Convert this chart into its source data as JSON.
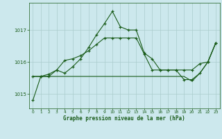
{
  "background_color": "#cce8ed",
  "grid_color": "#aacccc",
  "line_color": "#1a5c1a",
  "marker": "+",
  "ylim": [
    1014.55,
    1017.85
  ],
  "yticks": [
    1015,
    1016,
    1017
  ],
  "xlim": [
    -0.5,
    23.5
  ],
  "xticks": [
    0,
    1,
    2,
    3,
    4,
    5,
    6,
    7,
    8,
    9,
    10,
    11,
    12,
    13,
    14,
    15,
    16,
    17,
    18,
    19,
    20,
    21,
    22,
    23
  ],
  "xlabel": "Graphe pression niveau de la mer (hPa)",
  "line1_y": [
    1014.8,
    1015.55,
    1015.55,
    1015.75,
    1015.65,
    1015.85,
    1016.1,
    1016.45,
    1016.85,
    1017.2,
    1017.58,
    1017.1,
    1017.0,
    1017.0,
    1016.28,
    1016.1,
    1015.75,
    1015.75,
    1015.75,
    1015.75,
    1015.75,
    1015.95,
    1016.0,
    1016.6
  ],
  "line2_y": [
    1015.55,
    1015.55,
    1015.55,
    1015.55,
    1015.55,
    1015.55,
    1015.55,
    1015.55,
    1015.55,
    1015.55,
    1015.55,
    1015.55,
    1015.55,
    1015.55,
    1015.55,
    1015.55,
    1015.55,
    1015.55,
    1015.55,
    1015.55,
    1015.4,
    1015.65,
    1016.0,
    1016.6
  ],
  "line3_y": [
    1015.55,
    1015.55,
    1015.62,
    1015.75,
    1016.05,
    1016.1,
    1016.2,
    1016.35,
    1016.55,
    1016.75,
    1016.75,
    1016.75,
    1016.75,
    1016.75,
    1016.25,
    1015.75,
    1015.75,
    1015.75,
    1015.75,
    1015.45,
    1015.45,
    1015.65,
    1016.0,
    1016.6
  ]
}
